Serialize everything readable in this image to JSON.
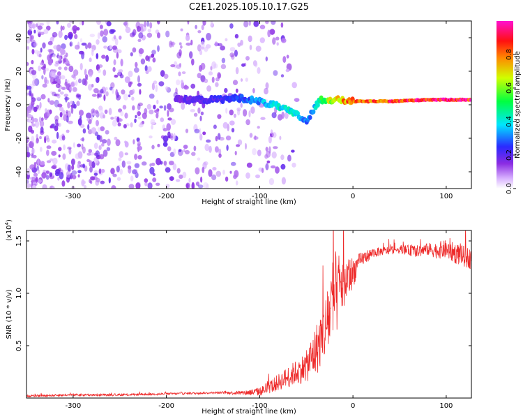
{
  "figure_title": "C2E1.2025.105.10.17.G25",
  "colors": {
    "snr_line": "#ee2a2a",
    "frame": "#000000"
  },
  "chart_data": [
    {
      "type": "heatmap",
      "xlabel": "Height of straight line (km)",
      "ylabel": "Frequency (Hz)",
      "xlim": [
        -350,
        127
      ],
      "ylim": [
        -50,
        50
      ],
      "x_ticks": [
        -300,
        -200,
        -100,
        0,
        100
      ],
      "y_ticks": [
        -40,
        -20,
        0,
        20,
        40
      ],
      "colorbar": {
        "label": "Normalized spectral amplitude",
        "range": [
          0,
          1
        ],
        "ticks": [
          "0.0",
          "0.2",
          "0.4",
          "0.6",
          "0.8"
        ],
        "tick_values": [
          0,
          0.2,
          0.4,
          0.6,
          0.8
        ],
        "colormap": "white-purple-blue-cyan-green-yellow-red-magenta"
      },
      "ridge": {
        "x": [
          -190,
          -150,
          -120,
          -100,
          -80,
          -60,
          -50,
          -42,
          -35,
          -20,
          0,
          40,
          80,
          127
        ],
        "freq": [
          3,
          3,
          4,
          2,
          -1,
          -6,
          -10,
          -3,
          3,
          3,
          2,
          2,
          3,
          3
        ],
        "level": [
          0.18,
          0.22,
          0.28,
          0.35,
          0.42,
          0.4,
          0.3,
          0.38,
          0.55,
          0.7,
          0.85,
          0.9,
          0.95,
          0.95
        ]
      },
      "scatter_region": {
        "x_from": -350,
        "x_to": -100,
        "freq_from": -50,
        "freq_to": 50,
        "level": 0.15
      }
    },
    {
      "type": "line",
      "xlabel": "Height of straight line (km)",
      "ylabel": "SNR (10 * v/v)",
      "y_multiplier": "(x10",
      "y_multiplier_exp": "4",
      "y_multiplier_close": ")",
      "xlim": [
        -350,
        127
      ],
      "ylim": [
        0,
        1.6
      ],
      "x_ticks": [
        -300,
        -200,
        -100,
        0,
        100
      ],
      "y_ticks": [
        "0.5",
        "1.0",
        "1.5"
      ],
      "y_tick_values": [
        0.5,
        1.0,
        1.5
      ],
      "series": [
        {
          "x": [
            -350,
            -300,
            -250,
            -200,
            -150,
            -120,
            -100,
            -90,
            -80,
            -70,
            -60,
            -50,
            -40,
            -30,
            -25,
            -20,
            -15,
            -10,
            -5,
            0,
            5,
            10,
            20,
            30,
            40,
            50,
            60,
            70,
            80,
            90,
            100,
            110,
            120,
            127
          ],
          "y": [
            0.02,
            0.03,
            0.03,
            0.04,
            0.05,
            0.05,
            0.06,
            0.1,
            0.15,
            0.2,
            0.25,
            0.3,
            0.45,
            0.65,
            0.8,
            0.95,
            1.05,
            1.1,
            1.15,
            1.2,
            1.27,
            1.33,
            1.38,
            1.4,
            1.41,
            1.42,
            1.41,
            1.4,
            1.42,
            1.41,
            1.42,
            1.38,
            1.35,
            1.33
          ],
          "noise": [
            0.01,
            0.01,
            0.01,
            0.01,
            0.01,
            0.02,
            0.04,
            0.06,
            0.08,
            0.1,
            0.12,
            0.15,
            0.25,
            0.3,
            0.4,
            0.45,
            0.35,
            0.25,
            0.2,
            0.15,
            0.1,
            0.07,
            0.05,
            0.04,
            0.04,
            0.04,
            0.05,
            0.06,
            0.06,
            0.08,
            0.09,
            0.1,
            0.1,
            0.1
          ]
        }
      ]
    }
  ]
}
